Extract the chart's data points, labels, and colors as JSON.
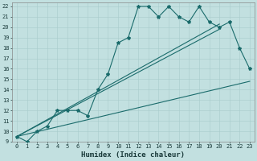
{
  "xlabel": "Humidex (Indice chaleur)",
  "background_color": "#c2e0e0",
  "grid_color": "#b0d0d0",
  "line_color": "#1a6b6b",
  "xlim": [
    -0.5,
    23.5
  ],
  "ylim": [
    9,
    22.4
  ],
  "xtick_labels": [
    "0",
    "1",
    "2",
    "3",
    "4",
    "5",
    "6",
    "7",
    "8",
    "9",
    "10",
    "11",
    "12",
    "13",
    "14",
    "15",
    "16",
    "17",
    "18",
    "19",
    "20",
    "21",
    "22",
    "23"
  ],
  "xtick_vals": [
    0,
    1,
    2,
    3,
    4,
    5,
    6,
    7,
    8,
    9,
    10,
    11,
    12,
    13,
    14,
    15,
    16,
    17,
    18,
    19,
    20,
    21,
    22,
    23
  ],
  "ytick_vals": [
    9,
    10,
    11,
    12,
    13,
    14,
    15,
    16,
    17,
    18,
    19,
    20,
    21,
    22
  ],
  "curve1_x": [
    0,
    1,
    2,
    3,
    4,
    5,
    6,
    7,
    8,
    9,
    10,
    11,
    12,
    13,
    14,
    15,
    16,
    17,
    18,
    19,
    20,
    21,
    22,
    23
  ],
  "curve1_y": [
    9.5,
    9.0,
    10.0,
    10.5,
    12.0,
    12.0,
    12.0,
    11.5,
    14.0,
    15.5,
    18.5,
    19.0,
    22.0,
    22.0,
    21.0,
    22.0,
    21.0,
    20.5,
    22.0,
    20.5,
    20.0,
    20.5,
    18.0,
    16.0
  ],
  "curve2_x": [
    0,
    23
  ],
  "curve2_y": [
    9.5,
    14.8
  ],
  "curve3_x": [
    0,
    20
  ],
  "curve3_y": [
    9.5,
    19.8
  ],
  "curve4_x": [
    0,
    20
  ],
  "curve4_y": [
    9.5,
    20.3
  ],
  "markersize": 3,
  "linewidth": 0.8,
  "fontsize_ticks": 5.0,
  "fontsize_label": 6.5
}
